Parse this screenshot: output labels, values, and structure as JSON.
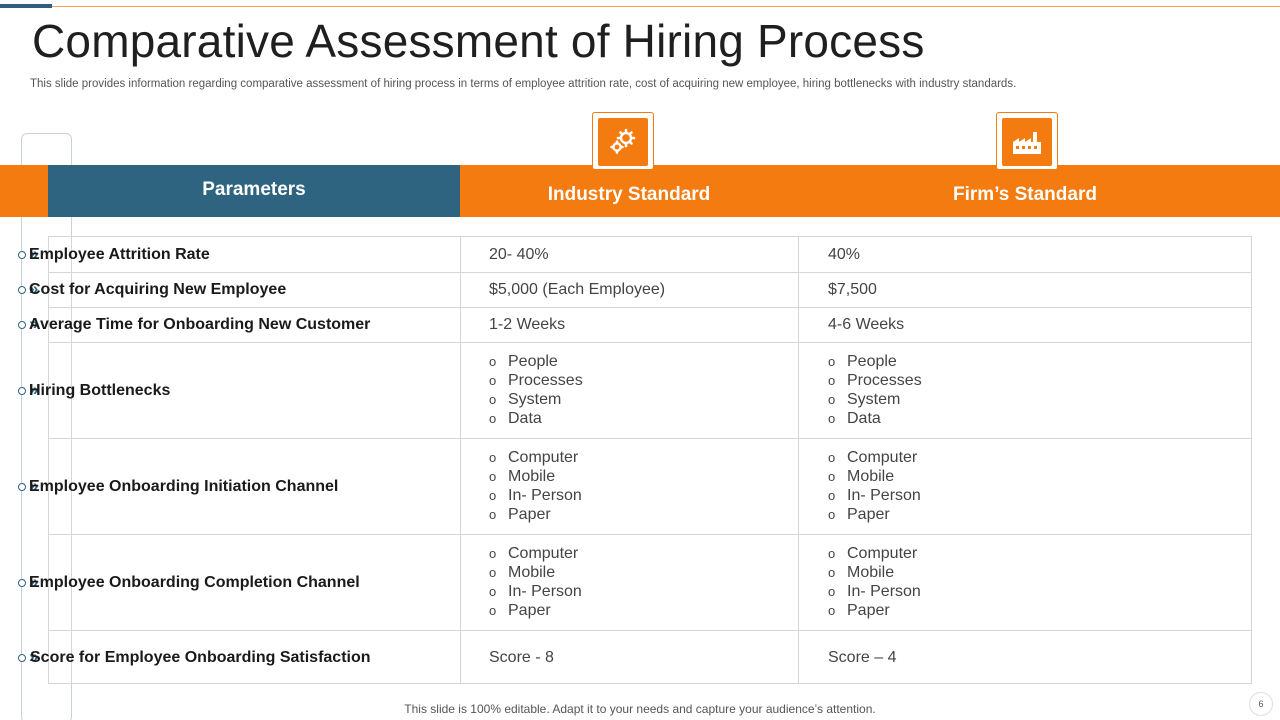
{
  "title": "Comparative Assessment of Hiring Process",
  "subtitle": "This slide provides information regarding comparative assessment of hiring process in terms of employee attrition rate, cost of acquiring new employee, hiring bottlenecks with industry standards.",
  "headers": {
    "parameters": "Parameters",
    "industry": "Industry Standard",
    "firm": "Firm’s Standard"
  },
  "icons": {
    "industry": "gears-icon",
    "firm": "factory-icon"
  },
  "rows": [
    {
      "param": "Employee Attrition  Rate",
      "industry": "20- 40%",
      "firm": "40%"
    },
    {
      "param": "Cost for Acquiring New Employee",
      "industry": "$5,000 (Each Employee)",
      "firm": "$7,500"
    },
    {
      "param": "Average Time for Onboarding New Customer",
      "industry": "1-2 Weeks",
      "firm": "4-6 Weeks"
    },
    {
      "param": "Hiring Bottlenecks",
      "industry": [
        "People",
        "Processes",
        "System",
        "Data"
      ],
      "firm": [
        "People",
        "Processes",
        "System",
        "Data"
      ]
    },
    {
      "param": "Employee Onboarding Initiation  Channel",
      "industry": [
        "Computer",
        "Mobile",
        "In- Person",
        "Paper"
      ],
      "firm": [
        "Computer",
        "Mobile",
        "In- Person",
        "Paper"
      ]
    },
    {
      "param": "Employee Onboarding Completion Channel",
      "industry": [
        "Computer",
        "Mobile",
        "In- Person",
        "Paper"
      ],
      "firm": [
        "Computer",
        "Mobile",
        "In- Person",
        "Paper"
      ]
    },
    {
      "param": "Score for Employee Onboarding Satisfaction",
      "industry": "Score - 8",
      "firm": "Score – 4"
    }
  ],
  "bullet_char": "o",
  "marker_chevron": "»",
  "footer": "This slide is 100% editable. Adapt it to your needs and capture your audience’s attention.",
  "page_number": "6",
  "colors": {
    "accent": "#f47b0f",
    "primary": "#2e6480"
  }
}
